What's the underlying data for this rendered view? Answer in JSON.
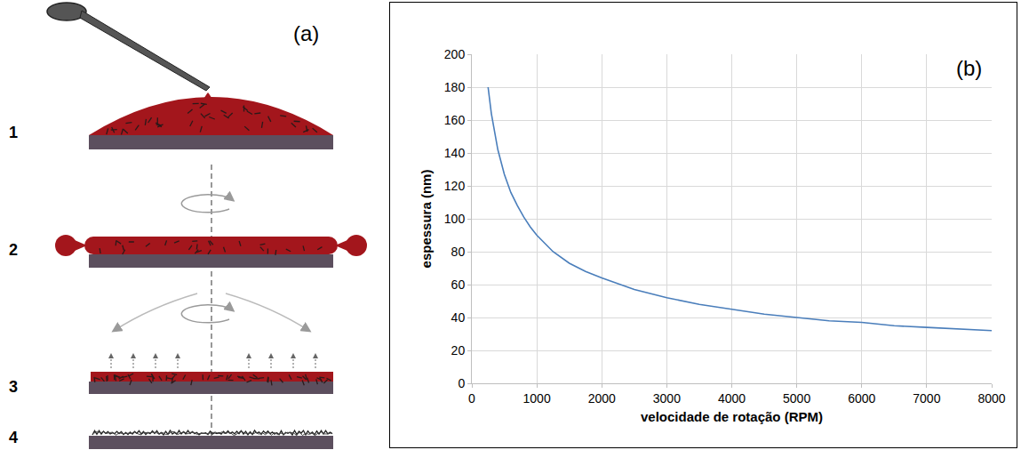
{
  "diagram": {
    "label": "(a)",
    "steps": [
      1,
      2,
      3,
      4
    ]
  },
  "chart_data": {
    "type": "line",
    "label": "(b)",
    "x_label": "velocidade de rotação (RPM)",
    "y_label": "espessura (nm)",
    "x": [
      250,
      300,
      400,
      500,
      600,
      700,
      800,
      900,
      1000,
      1250,
      1500,
      1750,
      2000,
      2500,
      3000,
      3500,
      4000,
      4500,
      5000,
      5500,
      6000,
      6500,
      7000,
      7500,
      8000
    ],
    "values": [
      180,
      164,
      142,
      127,
      116,
      108,
      101,
      95,
      90,
      80,
      73,
      68,
      64,
      57,
      52,
      48,
      45,
      42,
      40,
      38,
      37,
      35,
      34,
      33,
      32
    ],
    "color": "#4a7ebb",
    "xlim": [
      0,
      8000
    ],
    "xticks": [
      0,
      1000,
      2000,
      3000,
      4000,
      5000,
      6000,
      7000,
      8000
    ],
    "ylim": [
      0,
      200
    ],
    "yticks": [
      0,
      20,
      40,
      60,
      80,
      100,
      120,
      140,
      160,
      180,
      200
    ],
    "grid": true
  }
}
